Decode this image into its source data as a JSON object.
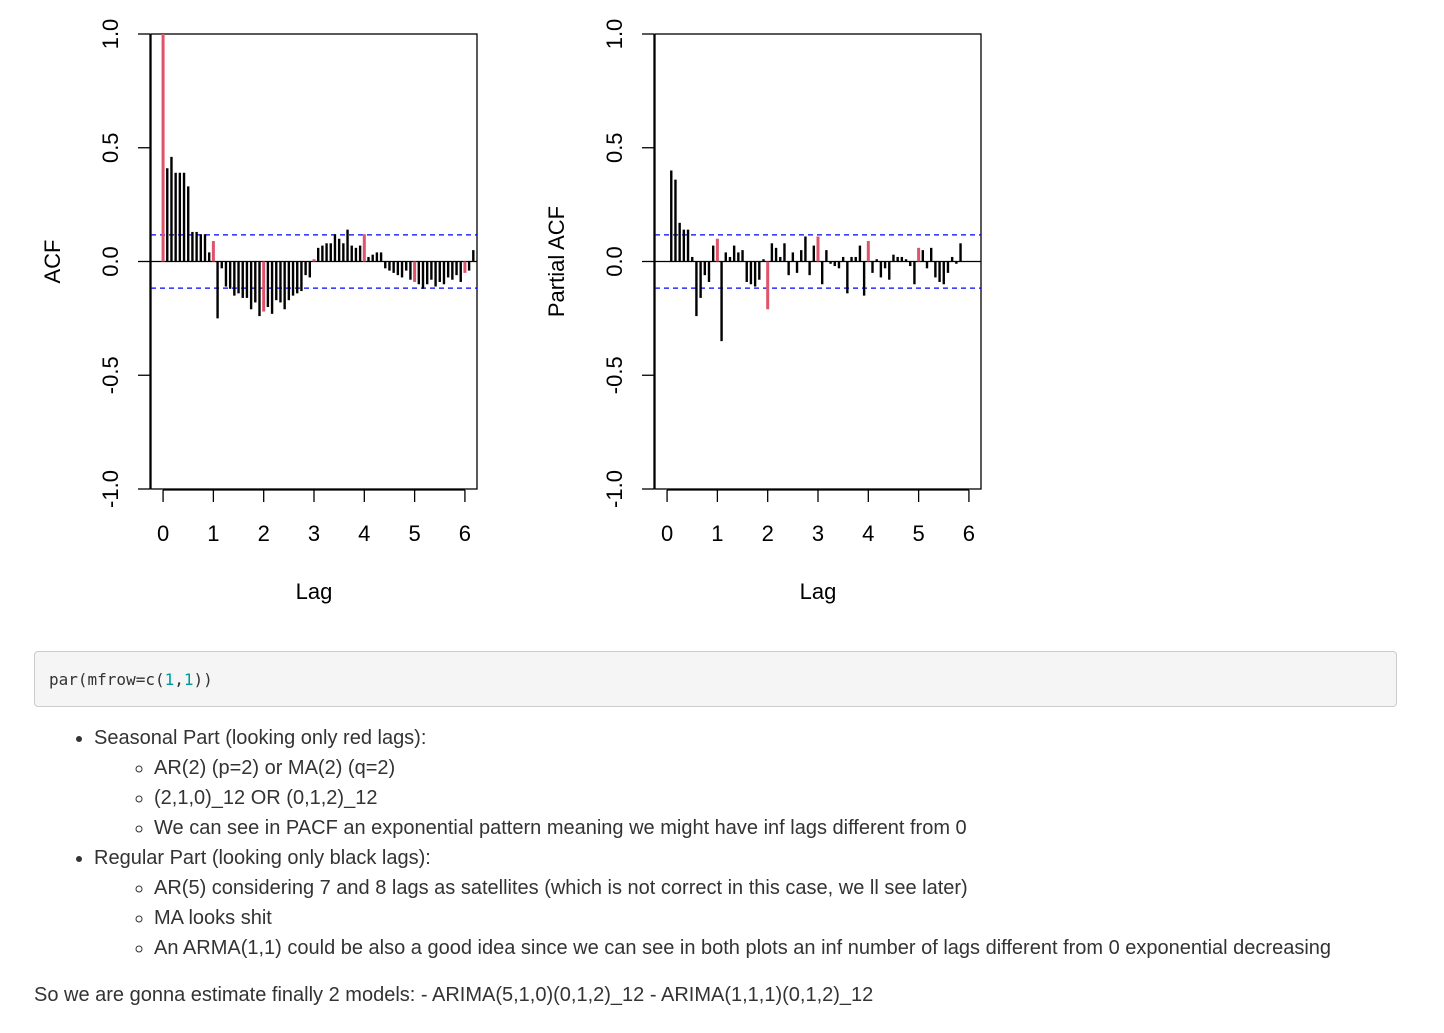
{
  "chart_data": [
    {
      "type": "bar",
      "ylabel": "ACF",
      "xlabel": "Lag",
      "xlim": [
        -0.24,
        6.24
      ],
      "ylim": [
        -1.0,
        1.0
      ],
      "x_ticks": [
        0,
        1,
        2,
        3,
        4,
        5,
        6
      ],
      "x_tick_labels": [
        "0",
        "1",
        "2",
        "3",
        "4",
        "5",
        "6"
      ],
      "y_ticks": [
        -1.0,
        -0.5,
        0.0,
        0.5,
        1.0
      ],
      "y_tick_labels": [
        "-1.0",
        "-0.5",
        "0.0",
        "0.5",
        "1.0"
      ],
      "confidence_bound": 0.117,
      "seasonal_color": "#DF536B",
      "regular_color": "#000000",
      "bound_color": "#0000FF",
      "values": [
        1.0,
        0.41,
        0.46,
        0.39,
        0.39,
        0.39,
        0.33,
        0.13,
        0.13,
        0.12,
        0.12,
        0.04,
        0.09,
        -0.25,
        -0.03,
        -0.11,
        -0.12,
        -0.15,
        -0.14,
        -0.16,
        -0.16,
        -0.21,
        -0.18,
        -0.24,
        -0.22,
        -0.2,
        -0.23,
        -0.17,
        -0.18,
        -0.21,
        -0.17,
        -0.15,
        -0.14,
        -0.13,
        -0.06,
        -0.07,
        0.01,
        0.06,
        0.07,
        0.08,
        0.08,
        0.12,
        0.1,
        0.08,
        0.14,
        0.07,
        0.06,
        0.07,
        0.12,
        0.02,
        0.03,
        0.04,
        0.04,
        -0.03,
        -0.04,
        -0.05,
        -0.06,
        -0.07,
        -0.04,
        -0.08,
        -0.09,
        -0.1,
        -0.12,
        -0.1,
        -0.08,
        -0.11,
        -0.09,
        -0.1,
        -0.07,
        -0.08,
        -0.06,
        -0.09,
        -0.05,
        -0.04,
        0.05
      ]
    },
    {
      "type": "bar",
      "ylabel": "Partial ACF",
      "xlabel": "Lag",
      "xlim": [
        -0.24,
        6.24
      ],
      "ylim": [
        -1.0,
        1.0
      ],
      "x_ticks": [
        0,
        1,
        2,
        3,
        4,
        5,
        6
      ],
      "x_tick_labels": [
        "0",
        "1",
        "2",
        "3",
        "4",
        "5",
        "6"
      ],
      "y_ticks": [
        -1.0,
        -0.5,
        0.0,
        0.5,
        1.0
      ],
      "y_tick_labels": [
        "-1.0",
        "-0.5",
        "0.0",
        "0.5",
        "1.0"
      ],
      "confidence_bound": 0.117,
      "seasonal_color": "#DF536B",
      "regular_color": "#000000",
      "bound_color": "#0000FF",
      "values": [
        0.4,
        0.36,
        0.17,
        0.14,
        0.14,
        0.02,
        -0.24,
        -0.16,
        -0.06,
        -0.09,
        0.07,
        0.1,
        -0.35,
        0.04,
        0.02,
        0.07,
        0.04,
        0.05,
        -0.09,
        -0.1,
        -0.11,
        -0.08,
        0.01,
        -0.21,
        0.08,
        0.06,
        0.02,
        0.08,
        -0.06,
        0.04,
        -0.05,
        0.05,
        0.11,
        -0.06,
        0.07,
        0.11,
        -0.1,
        0.05,
        -0.01,
        -0.02,
        -0.03,
        0.02,
        -0.14,
        0.02,
        0.02,
        0.07,
        -0.15,
        0.09,
        -0.05,
        0.01,
        -0.07,
        -0.03,
        -0.08,
        0.03,
        0.02,
        0.02,
        0.01,
        -0.02,
        -0.1,
        0.06,
        0.05,
        -0.03,
        0.06,
        -0.07,
        -0.09,
        -0.1,
        -0.05,
        0.02,
        -0.01,
        0.08
      ]
    }
  ],
  "code": {
    "prefix": "par(mfrow=c(",
    "num1": "1",
    "comma": ",",
    "num2": "1",
    "suffix": "))"
  },
  "notes": {
    "seasonal": {
      "title": "Seasonal Part (looking only red lags):",
      "items": [
        "AR(2) (p=2) or MA(2) (q=2)",
        "(2,1,0)_12 OR (0,1,2)_12",
        "We can see in PACF an exponential pattern meaning we might have inf lags different from 0"
      ]
    },
    "regular": {
      "title": "Regular Part (looking only black lags):",
      "items": [
        "AR(5) considering 7 and 8 lags as satellites (which is not correct in this case, we ll see later)",
        "MA looks shit",
        "An ARMA(1,1) could be also a good idea since we can see in both plots an inf number of lags different from 0 exponential decreasing"
      ]
    },
    "summary": "So we are gonna estimate finally 2 models: - ARIMA(5,1,0)(0,1,2)_12 - ARIMA(1,1,1)(0,1,2)_12"
  }
}
